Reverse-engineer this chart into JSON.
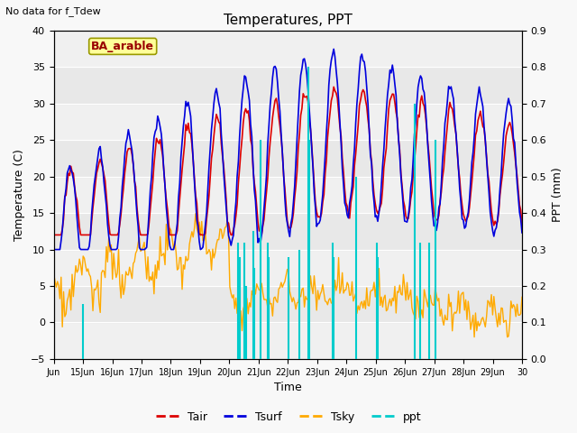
{
  "title": "Temperatures, PPT",
  "top_left_text": "No data for f_Tdew",
  "annotation_text": "BA_arable",
  "xlabel": "Time",
  "ylabel_left": "Temperature (C)",
  "ylabel_right": "PPT (mm)",
  "ylim_left": [
    -5,
    40
  ],
  "ylim_right": [
    0.0,
    0.9
  ],
  "yticks_left": [
    -5,
    0,
    5,
    10,
    15,
    20,
    25,
    30,
    35,
    40
  ],
  "yticks_right": [
    0.0,
    0.1,
    0.2,
    0.3,
    0.4,
    0.5,
    0.6,
    0.7,
    0.8,
    0.9
  ],
  "xticklabels": [
    "Jun",
    "15Jun",
    "16Jun",
    "17Jun",
    "18Jun",
    "19Jun",
    "20Jun",
    "21Jun",
    "22Jun",
    "23Jun",
    "24Jun",
    "25Jun",
    "26Jun",
    "27Jun",
    "28Jun",
    "29Jun",
    "30"
  ],
  "colors": {
    "Tair": "#dd0000",
    "Tsurf": "#0000dd",
    "Tsky": "#ffaa00",
    "ppt": "#00cccc"
  },
  "bg_color": "#e8e8e8",
  "band_light": "#f0f0f0",
  "annotation_bg": "#ffff99",
  "annotation_border": "#999900"
}
